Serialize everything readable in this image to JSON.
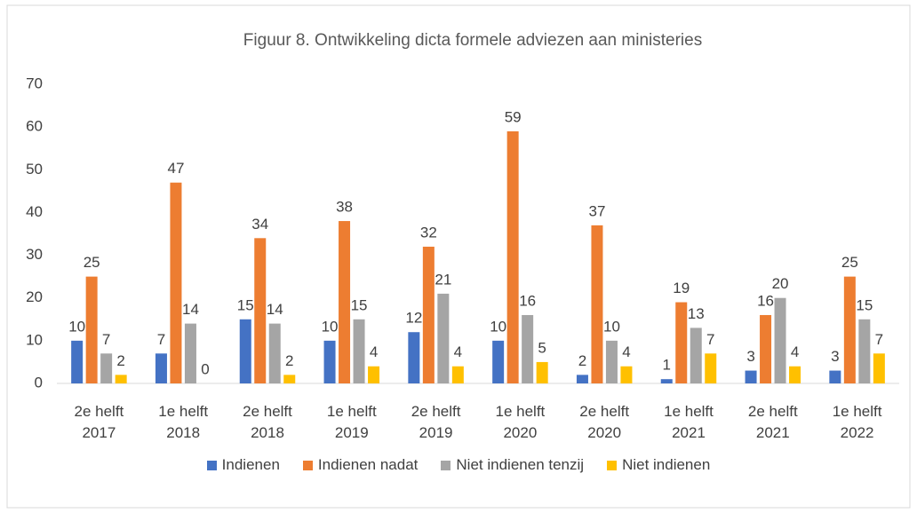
{
  "chart_data": {
    "type": "bar",
    "title": "Figuur 8. Ontwikkeling dicta  formele adviezen aan ministeries",
    "categories": [
      "2e helft 2017",
      "1e helft 2018",
      "2e helft 2018",
      "1e helft 2019",
      "2e helft 2019",
      "1e helft 2020",
      "2e helft 2020",
      "1e helft 2021",
      "2e helft 2021",
      "1e helft 2022"
    ],
    "series": [
      {
        "name": "Indienen",
        "color": "#4472c4",
        "values": [
          10,
          7,
          15,
          10,
          12,
          10,
          2,
          1,
          3,
          3
        ]
      },
      {
        "name": "Indienen nadat",
        "color": "#ed7d31",
        "values": [
          25,
          47,
          34,
          38,
          32,
          59,
          37,
          19,
          16,
          25
        ]
      },
      {
        "name": "Niet indienen tenzij",
        "color": "#a5a5a5",
        "values": [
          7,
          14,
          14,
          15,
          21,
          16,
          10,
          13,
          20,
          15
        ]
      },
      {
        "name": "Niet indienen",
        "color": "#ffc000",
        "values": [
          2,
          0,
          2,
          4,
          4,
          5,
          4,
          7,
          4,
          7
        ]
      }
    ],
    "ylim": [
      0,
      70
    ],
    "yticks": [
      0,
      10,
      20,
      30,
      40,
      50,
      60,
      70
    ],
    "grid": false,
    "legend": "bottom",
    "data_labels": true
  }
}
